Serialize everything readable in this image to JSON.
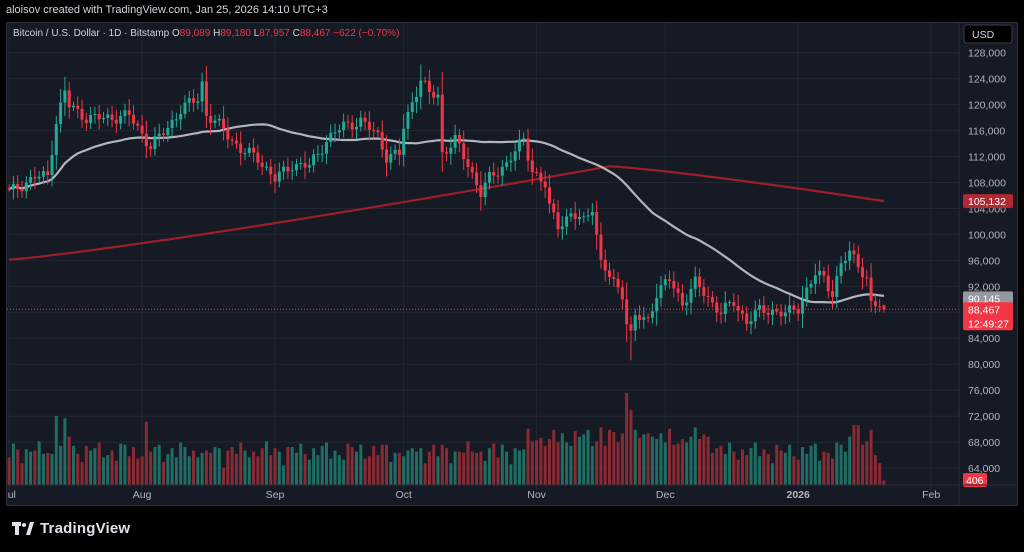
{
  "header": {
    "credit": "aloisov created with TradingView.com, Jan 25, 2026 14:10 UTC+3"
  },
  "footer": {
    "brand": "TradingView"
  },
  "chart_data": {
    "type": "candlestick",
    "symbol": "Bitcoin / U.S. Dollar · 1D · Bitstamp",
    "ohlc_label": {
      "o": "O",
      "o_val": "89,089",
      "h": "H",
      "h_val": "89,180",
      "l": "L",
      "l_val": "87,957",
      "c": "C",
      "c_val": "88,467",
      "change": "−622 (−0.70%)"
    },
    "currency": "USD",
    "y_ticks": [
      "128,000",
      "124,000",
      "120,000",
      "116,000",
      "112,000",
      "108,000",
      "104,000",
      "100,000",
      "96,000",
      "92,000",
      "88,000",
      "84,000",
      "80,000",
      "76,000",
      "72,000",
      "68,000",
      "64,000"
    ],
    "y_tick_values": [
      128000,
      124000,
      120000,
      116000,
      112000,
      108000,
      104000,
      100000,
      96000,
      92000,
      88000,
      84000,
      80000,
      76000,
      72000,
      68000,
      64000
    ],
    "ylim": [
      62000,
      129500
    ],
    "x_ticks": [
      {
        "label": "Jul",
        "idx": 0
      },
      {
        "label": "Aug",
        "idx": 31
      },
      {
        "label": "Sep",
        "idx": 62
      },
      {
        "label": "Oct",
        "idx": 92
      },
      {
        "label": "Nov",
        "idx": 123
      },
      {
        "label": "Dec",
        "idx": 153
      },
      {
        "label": "2026",
        "idx": 184,
        "bold": true
      },
      {
        "label": "Feb",
        "idx": 215
      }
    ],
    "price_labels": [
      {
        "text": "105,132",
        "value": 105132,
        "color": "#b22833"
      },
      {
        "text": "90,145",
        "value": 90145,
        "color": "#9598a1"
      },
      {
        "text": "88,467",
        "value": 88467,
        "color": "#f23645",
        "sub": "12:49:27"
      }
    ],
    "volume_label": "406",
    "up_color": "#22ab94",
    "down_color": "#f23645",
    "ma50_color": "#b2b5be",
    "ma200_color": "#9c1f2b",
    "candles": [],
    "ma50": [],
    "ma200": [],
    "volume": []
  }
}
